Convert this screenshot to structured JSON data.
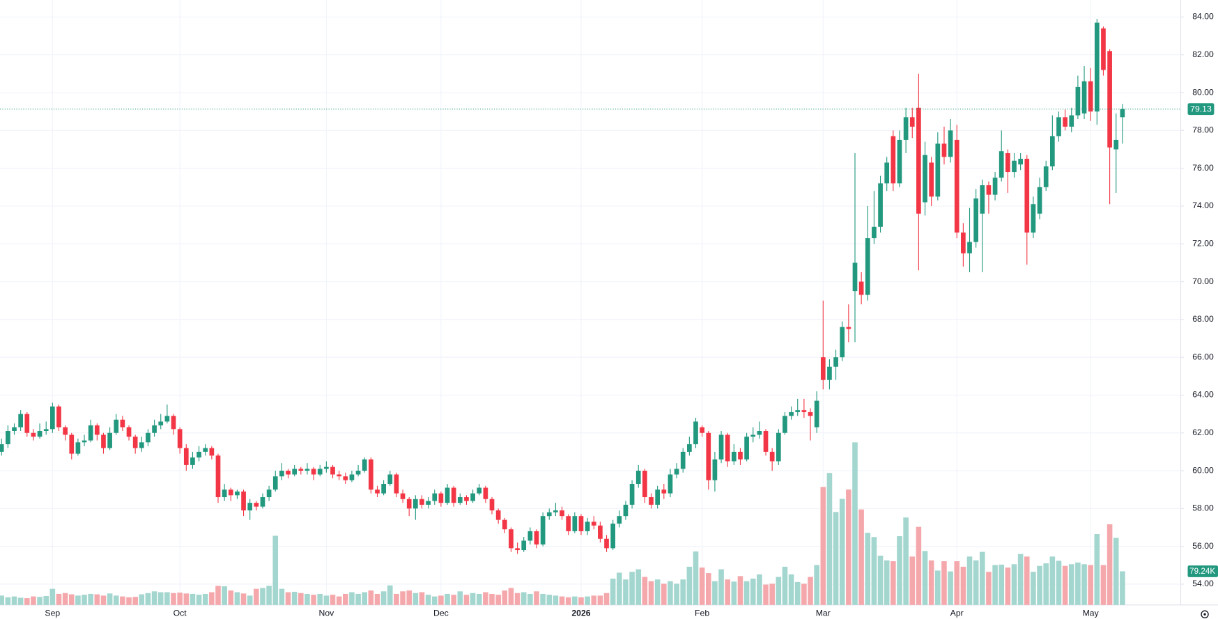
{
  "chart_data": {
    "type": "candlestick",
    "categories": [
      null,
      null,
      null,
      null,
      null,
      null,
      null,
      null,
      "Sep",
      null,
      null,
      null,
      null,
      null,
      null,
      null,
      null,
      null,
      null,
      null,
      null,
      null,
      null,
      null,
      null,
      null,
      null,
      null,
      "Oct",
      null,
      null,
      null,
      null,
      null,
      null,
      null,
      null,
      null,
      null,
      null,
      null,
      null,
      null,
      null,
      null,
      null,
      null,
      null,
      null,
      null,
      null,
      "Nov",
      null,
      null,
      null,
      null,
      null,
      null,
      null,
      null,
      null,
      null,
      null,
      null,
      null,
      null,
      null,
      null,
      null,
      "Dec",
      null,
      null,
      null,
      null,
      null,
      null,
      null,
      null,
      null,
      null,
      null,
      null,
      null,
      null,
      null,
      null,
      null,
      null,
      null,
      null,
      null,
      "2026",
      null,
      null,
      null,
      null,
      null,
      null,
      null,
      null,
      null,
      null,
      null,
      null,
      null,
      null,
      null,
      null,
      null,
      null,
      "Feb",
      null,
      null,
      null,
      null,
      null,
      null,
      null,
      null,
      null,
      null,
      null,
      null,
      null,
      null,
      null,
      null,
      null,
      null,
      "Mar",
      null,
      null,
      null,
      null,
      null,
      null,
      null,
      null,
      null,
      null,
      null,
      null,
      null,
      null,
      null,
      null,
      null,
      null,
      null,
      null,
      "Apr",
      null,
      null,
      null,
      null,
      null,
      null,
      null,
      null,
      null,
      null,
      null,
      null,
      null,
      null,
      null,
      null,
      null,
      null,
      null,
      null,
      "May",
      null,
      null,
      null,
      null,
      null
    ],
    "open": [
      61.0,
      61.4,
      62.1,
      62.3,
      63.0,
      62.0,
      61.8,
      62.1,
      62.2,
      63.4,
      62.3,
      61.9,
      60.9,
      61.5,
      61.6,
      62.4,
      61.9,
      61.2,
      62.0,
      62.7,
      62.3,
      61.8,
      61.2,
      61.5,
      62.0,
      62.4,
      62.6,
      62.9,
      62.2,
      61.2,
      60.3,
      60.7,
      61.0,
      61.2,
      60.8,
      58.6,
      59.0,
      58.7,
      58.9,
      57.9,
      58.3,
      58.1,
      58.6,
      59.0,
      59.7,
      60.0,
      59.8,
      60.1,
      60.0,
      60.1,
      59.8,
      60.1,
      60.2,
      59.8,
      59.7,
      59.5,
      59.8,
      60.0,
      60.6,
      59.0,
      58.8,
      59.3,
      59.8,
      58.8,
      58.5,
      58.0,
      58.5,
      58.2,
      58.4,
      58.8,
      58.3,
      59.1,
      58.3,
      58.6,
      58.4,
      58.8,
      59.1,
      58.5,
      57.9,
      57.4,
      56.9,
      55.9,
      55.8,
      56.3,
      56.8,
      56.1,
      57.6,
      57.8,
      57.9,
      57.6,
      56.8,
      57.6,
      56.8,
      57.3,
      57.1,
      56.4,
      55.9,
      57.2,
      57.6,
      58.2,
      59.3,
      60.0,
      58.6,
      58.2,
      59.0,
      58.8,
      59.8,
      60.1,
      61.0,
      61.4,
      62.3,
      62.0,
      59.5,
      60.6,
      61.9,
      60.5,
      61.0,
      60.6,
      61.8,
      61.9,
      62.1,
      61.0,
      60.5,
      62.0,
      62.9,
      63.1,
      63.2,
      63.1,
      62.3,
      66.0,
      64.8,
      65.5,
      66.0,
      67.6,
      69.5,
      70.0,
      69.3,
      72.3,
      72.9,
      75.2,
      77.7,
      75.2,
      77.5,
      78.7,
      79.2,
      74.2,
      76.3,
      74.5,
      77.3,
      76.6,
      77.5,
      72.6,
      71.5,
      72.1,
      73.6,
      75.1,
      74.6,
      75.5,
      76.8,
      75.8,
      76.2,
      76.5,
      72.6,
      73.6,
      75.0,
      76.1,
      77.7,
      78.7,
      78.2,
      78.8,
      78.9,
      80.6,
      79.0,
      83.4,
      82.2,
      77.0,
      78.7
    ],
    "high": [
      61.7,
      62.4,
      62.5,
      63.2,
      63.1,
      62.2,
      62.5,
      62.6,
      63.6,
      63.5,
      62.4,
      62.0,
      61.7,
      61.9,
      62.7,
      62.5,
      62.0,
      62.3,
      63.0,
      62.9,
      62.4,
      61.9,
      61.8,
      62.2,
      62.7,
      63.0,
      63.5,
      63.0,
      62.3,
      61.4,
      61.0,
      61.3,
      61.4,
      61.3,
      60.9,
      59.3,
      59.1,
      59.0,
      59.0,
      58.5,
      58.4,
      58.8,
      59.2,
      60.0,
      60.4,
      60.1,
      60.3,
      60.2,
      60.4,
      60.2,
      60.3,
      60.5,
      60.3,
      60.0,
      59.9,
      60.0,
      60.3,
      60.7,
      60.7,
      59.2,
      59.5,
      60.0,
      59.9,
      59.0,
      58.6,
      58.7,
      58.7,
      58.6,
      59.0,
      58.9,
      59.3,
      59.2,
      58.8,
      58.7,
      59.0,
      59.3,
      59.2,
      58.6,
      58.0,
      57.5,
      57.0,
      56.2,
      56.5,
      57.0,
      56.9,
      57.8,
      58.0,
      58.3,
      58.1,
      57.7,
      57.8,
      57.7,
      57.5,
      57.6,
      57.3,
      56.6,
      57.4,
      57.9,
      58.4,
      59.5,
      60.3,
      60.1,
      58.8,
      59.2,
      59.3,
      60.1,
      60.4,
      61.2,
      61.8,
      62.8,
      62.4,
      62.1,
      61.0,
      62.1,
      62.0,
      61.4,
      61.2,
      62.0,
      62.3,
      62.6,
      62.2,
      61.2,
      62.2,
      63.1,
      63.4,
      63.8,
      63.8,
      63.3,
      64.2,
      69.0,
      65.9,
      66.4,
      67.9,
      68.8,
      76.8,
      70.5,
      74.0,
      74.8,
      75.6,
      76.6,
      78.0,
      78.0,
      79.2,
      79.2,
      81.0,
      77.4,
      76.6,
      77.9,
      78.2,
      78.6,
      78.3,
      73.1,
      73.9,
      74.9,
      75.4,
      75.3,
      75.8,
      78.0,
      77.0,
      76.8,
      76.8,
      76.7,
      74.5,
      75.5,
      76.4,
      78.8,
      79.0,
      79.1,
      79.2,
      80.9,
      81.4,
      81.3,
      83.9,
      83.5,
      82.3,
      78.9,
      79.4
    ],
    "low": [
      60.8,
      61.2,
      61.9,
      62.1,
      61.8,
      61.6,
      61.7,
      61.9,
      62.0,
      62.1,
      61.6,
      60.6,
      60.8,
      61.3,
      61.5,
      61.6,
      60.9,
      61.1,
      61.9,
      62.1,
      61.6,
      60.9,
      61.0,
      61.3,
      61.8,
      62.2,
      62.5,
      61.9,
      60.9,
      60.0,
      60.1,
      60.5,
      60.8,
      60.6,
      58.3,
      58.4,
      58.4,
      58.5,
      57.6,
      57.4,
      57.9,
      58.0,
      58.4,
      58.9,
      59.5,
      59.6,
      59.7,
      59.8,
      59.8,
      59.5,
      59.7,
      59.9,
      59.6,
      59.5,
      59.3,
      59.4,
      59.7,
      59.9,
      58.8,
      58.6,
      58.7,
      59.2,
      58.6,
      58.3,
      57.6,
      57.4,
      58.0,
      58.0,
      58.2,
      58.1,
      58.2,
      58.1,
      58.2,
      58.2,
      58.3,
      58.7,
      58.3,
      57.7,
      57.2,
      56.7,
      55.7,
      55.6,
      55.7,
      56.1,
      55.9,
      56.0,
      57.4,
      57.6,
      57.4,
      56.6,
      56.7,
      56.6,
      56.6,
      56.9,
      56.2,
      55.7,
      55.8,
      57.0,
      57.4,
      58.0,
      59.1,
      58.3,
      58.0,
      58.0,
      58.5,
      58.6,
      59.6,
      59.9,
      60.8,
      61.2,
      61.8,
      59.0,
      58.9,
      60.4,
      60.2,
      60.3,
      60.3,
      60.5,
      61.5,
      61.7,
      60.8,
      60.0,
      60.3,
      61.9,
      62.7,
      62.9,
      62.8,
      61.6,
      62.0,
      64.3,
      64.3,
      64.8,
      65.8,
      66.8,
      66.8,
      68.8,
      69.0,
      72.0,
      72.6,
      74.8,
      74.8,
      75.0,
      76.8,
      77.6,
      70.6,
      73.5,
      74.0,
      74.3,
      76.2,
      76.3,
      72.3,
      70.8,
      70.5,
      71.8,
      70.5,
      73.6,
      74.3,
      75.3,
      74.7,
      75.5,
      75.9,
      70.9,
      72.3,
      73.3,
      74.8,
      75.9,
      77.4,
      78.0,
      77.9,
      78.6,
      78.6,
      78.5,
      78.3,
      80.9,
      74.1,
      74.7,
      77.3
    ],
    "close": [
      61.4,
      62.1,
      62.3,
      63.0,
      62.0,
      61.8,
      62.1,
      62.2,
      63.4,
      62.3,
      61.9,
      60.9,
      61.5,
      61.6,
      62.4,
      61.9,
      61.2,
      62.0,
      62.7,
      62.3,
      61.8,
      61.2,
      61.5,
      62.0,
      62.4,
      62.6,
      62.9,
      62.2,
      61.2,
      60.3,
      60.7,
      61.0,
      61.2,
      60.8,
      58.6,
      59.0,
      58.7,
      58.9,
      57.9,
      58.3,
      58.1,
      58.6,
      59.0,
      59.7,
      60.0,
      59.8,
      60.1,
      60.0,
      60.1,
      59.8,
      60.1,
      60.2,
      59.8,
      59.7,
      59.5,
      59.8,
      60.0,
      60.6,
      59.0,
      58.8,
      59.3,
      59.8,
      58.8,
      58.5,
      58.0,
      58.5,
      58.2,
      58.4,
      58.8,
      58.3,
      59.1,
      58.3,
      58.6,
      58.4,
      58.8,
      59.1,
      58.5,
      57.9,
      57.4,
      56.9,
      55.9,
      55.8,
      56.3,
      56.8,
      56.1,
      57.6,
      57.8,
      57.9,
      57.6,
      56.8,
      57.6,
      56.8,
      57.3,
      57.1,
      56.4,
      55.9,
      57.2,
      57.6,
      58.2,
      59.3,
      60.0,
      58.6,
      58.2,
      59.0,
      58.8,
      59.8,
      60.1,
      61.0,
      61.4,
      62.6,
      62.0,
      59.5,
      60.6,
      61.9,
      60.5,
      61.0,
      60.6,
      61.8,
      61.9,
      62.1,
      61.0,
      60.5,
      62.0,
      62.9,
      63.1,
      63.2,
      63.1,
      62.9,
      63.7,
      64.8,
      65.5,
      66.0,
      67.6,
      67.5,
      71.0,
      69.3,
      72.3,
      72.9,
      75.2,
      76.3,
      75.2,
      77.5,
      78.7,
      78.2,
      73.6,
      76.7,
      74.5,
      77.3,
      76.6,
      78.0,
      72.6,
      71.5,
      72.1,
      74.4,
      75.1,
      74.6,
      75.5,
      76.9,
      75.8,
      76.4,
      76.5,
      72.6,
      74.1,
      75.0,
      76.1,
      77.7,
      78.7,
      78.2,
      78.8,
      80.3,
      80.6,
      79.0,
      83.7,
      81.2,
      77.1,
      77.5,
      79.13
    ],
    "volume": [
      22,
      18,
      20,
      17,
      16,
      20,
      19,
      21,
      38,
      26,
      28,
      25,
      22,
      24,
      26,
      25,
      22,
      27,
      22,
      20,
      18,
      19,
      25,
      28,
      32,
      30,
      30,
      28,
      29,
      27,
      26,
      24,
      26,
      30,
      45,
      44,
      34,
      30,
      27,
      22,
      38,
      40,
      45,
      163,
      38,
      30,
      31,
      28,
      26,
      24,
      26,
      22,
      24,
      20,
      26,
      30,
      26,
      30,
      34,
      26,
      32,
      46,
      26,
      32,
      34,
      28,
      30,
      24,
      20,
      22,
      26,
      24,
      32,
      24,
      28,
      26,
      30,
      26,
      24,
      34,
      40,
      28,
      30,
      26,
      32,
      26,
      24,
      22,
      20,
      18,
      20,
      18,
      20,
      22,
      22,
      28,
      62,
      76,
      60,
      78,
      84,
      66,
      56,
      60,
      50,
      56,
      50,
      60,
      90,
      126,
      88,
      75,
      56,
      84,
      60,
      55,
      68,
      56,
      62,
      72,
      48,
      50,
      66,
      90,
      72,
      54,
      50,
      66,
      94,
      278,
      311,
      219,
      250,
      272,
      383,
      225,
      170,
      160,
      116,
      105,
      103,
      162,
      206,
      114,
      184,
      127,
      105,
      81,
      103,
      79,
      103,
      90,
      114,
      105,
      125,
      78,
      94,
      95,
      88,
      96,
      120,
      114,
      78,
      92,
      98,
      114,
      104,
      92,
      96,
      100,
      96,
      94,
      167,
      94,
      190,
      158,
      79.24
    ],
    "last_volume_label": "79.24K",
    "up_color": "#22987f",
    "down_color": "#f23645",
    "volume_up_color": "#a3d6ce",
    "volume_down_color": "#f5a8ac",
    "ylim": [
      52.9,
      84.9
    ],
    "yticks": [
      {
        "value": 54,
        "label": "54.00"
      },
      {
        "value": 56,
        "label": "56.00"
      },
      {
        "value": 58,
        "label": "58.00"
      },
      {
        "value": 60,
        "label": "60.00"
      },
      {
        "value": 62,
        "label": "62.00"
      },
      {
        "value": 64,
        "label": "64.00"
      },
      {
        "value": 66,
        "label": "66.00"
      },
      {
        "value": 68,
        "label": "68.00"
      },
      {
        "value": 70,
        "label": "70.00"
      },
      {
        "value": 72,
        "label": "72.00"
      },
      {
        "value": 74,
        "label": "74.00"
      },
      {
        "value": 76,
        "label": "76.00"
      },
      {
        "value": 78,
        "label": "78.00"
      },
      {
        "value": 80,
        "label": "80.00"
      },
      {
        "value": 82,
        "label": "82.00"
      },
      {
        "value": 84,
        "label": "84.00"
      }
    ],
    "grid": true
  }
}
